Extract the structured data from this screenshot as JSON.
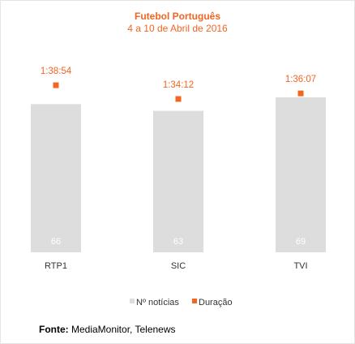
{
  "colors": {
    "bars": "#dddddd",
    "accent": "#f26522",
    "bar_label": "#ffffff",
    "text": "#333333"
  },
  "chart_data": {
    "type": "bar",
    "title": "Futebol Português",
    "subtitle": "4 a 10 de Abril de 2016",
    "categories": [
      "RTP1",
      "SIC",
      "TVI"
    ],
    "series": [
      {
        "name": "Nº notícias",
        "values": [
          66,
          63,
          69
        ],
        "color": "#dddddd",
        "kind": "bar"
      },
      {
        "name": "Duração",
        "values": [
          "1:38:54",
          "1:34:12",
          "1:36:07"
        ],
        "seconds": [
          5934,
          5652,
          5767
        ],
        "color": "#f26522",
        "kind": "marker"
      }
    ],
    "legend_position": "bottom",
    "grid": false
  },
  "source": {
    "label": "Fonte:",
    "text": " MediaMonitor, Telenews"
  }
}
